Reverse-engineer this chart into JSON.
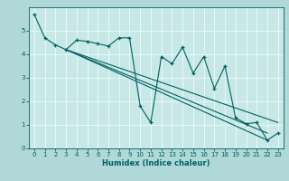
{
  "title": "",
  "xlabel": "Humidex (Indice chaleur)",
  "ylabel": "",
  "bg_color": "#b0d8d8",
  "plot_bg_color": "#c8e8e8",
  "grid_color": "#e8f8f8",
  "line_color": "#006060",
  "xlim": [
    -0.5,
    23.5
  ],
  "ylim": [
    0,
    6
  ],
  "xticks": [
    0,
    1,
    2,
    3,
    4,
    5,
    6,
    7,
    8,
    9,
    10,
    11,
    12,
    13,
    14,
    15,
    16,
    17,
    18,
    19,
    20,
    21,
    22,
    23
  ],
  "yticks": [
    0,
    1,
    2,
    3,
    4,
    5
  ],
  "series1_x": [
    0,
    1,
    2,
    3,
    4,
    5,
    6,
    7,
    8,
    9,
    10,
    11,
    12,
    13,
    14,
    15,
    16,
    17,
    18,
    19,
    20,
    21,
    22,
    23
  ],
  "series1_y": [
    5.7,
    4.7,
    4.4,
    4.2,
    4.6,
    4.55,
    4.45,
    4.35,
    4.7,
    4.7,
    1.8,
    1.1,
    3.9,
    3.6,
    4.3,
    3.2,
    3.9,
    2.55,
    3.5,
    1.3,
    1.05,
    1.1,
    0.35,
    0.65
  ],
  "line2_x": [
    3,
    23
  ],
  "line2_y": [
    4.2,
    1.1
  ],
  "line3_x": [
    3,
    22
  ],
  "line3_y": [
    4.2,
    0.65
  ],
  "line4_x": [
    3,
    22
  ],
  "line4_y": [
    4.2,
    0.35
  ],
  "xlabel_fontsize": 6.0,
  "tick_fontsize": 5.0
}
